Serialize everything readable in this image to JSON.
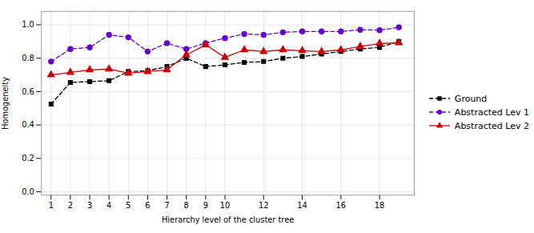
{
  "chart_data": {
    "type": "line",
    "x": [
      1,
      2,
      3,
      4,
      5,
      6,
      7,
      8,
      9,
      10,
      11,
      12,
      13,
      14,
      15,
      16,
      17,
      18,
      19
    ],
    "series": [
      {
        "name": "Ground",
        "color": "#000000",
        "marker": "square",
        "line_style": "dashed",
        "values": [
          0.525,
          0.655,
          0.66,
          0.665,
          0.72,
          0.725,
          0.75,
          0.8,
          0.75,
          0.76,
          0.775,
          0.78,
          0.8,
          0.81,
          0.825,
          0.84,
          0.855,
          0.865,
          0.9
        ]
      },
      {
        "name": "Abstracted Lev 1",
        "color": "#6600cc",
        "marker": "circle",
        "line_style": "dashed",
        "values": [
          0.78,
          0.855,
          0.865,
          0.94,
          0.925,
          0.84,
          0.89,
          0.855,
          0.89,
          0.92,
          0.945,
          0.94,
          0.955,
          0.96,
          0.96,
          0.96,
          0.97,
          0.968,
          0.985
        ]
      },
      {
        "name": "Abstracted Lev 2",
        "color": "#cc0000",
        "marker": "triangle",
        "line_style": "solid",
        "values": [
          0.7,
          0.715,
          0.73,
          0.735,
          0.71,
          0.72,
          0.73,
          0.82,
          0.88,
          0.805,
          0.85,
          0.84,
          0.85,
          0.845,
          0.84,
          0.85,
          0.87,
          0.888,
          0.892
        ]
      }
    ],
    "xlabel": "Hierarchy level of the cluster tree",
    "ylabel": "Homogeneity",
    "xlim": [
      0.5,
      19.8
    ],
    "xticks": [
      1,
      2,
      3,
      4,
      5,
      6,
      7,
      8,
      9,
      10,
      12,
      14,
      16,
      18
    ],
    "ylim": [
      -0.02,
      1.08
    ],
    "yticks": [
      {
        "value": 0,
        "label": "0.0"
      },
      0.2,
      0.4,
      0.6,
      0.8,
      {
        "value": 1,
        "label": "1.0"
      }
    ],
    "grid": true,
    "legend": "right"
  }
}
